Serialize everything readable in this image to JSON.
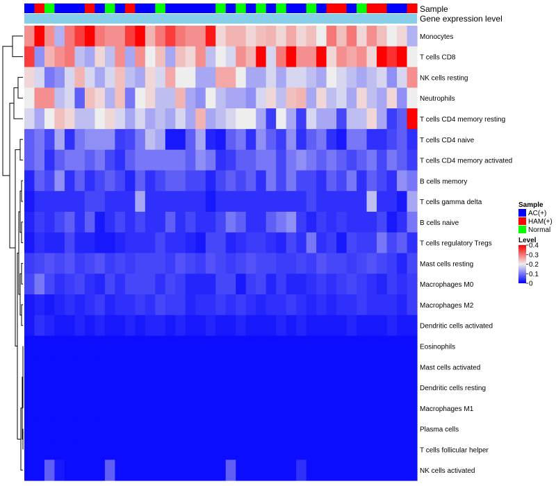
{
  "chart_data": {
    "type": "heatmap",
    "title": "",
    "annotation_tracks": [
      "Sample",
      "Gene expression level"
    ],
    "legend_sample": {
      "title": "Sample",
      "entries": [
        {
          "label": "AC(+)",
          "color": "#0000ff"
        },
        {
          "label": "HAM(+)",
          "color": "#ff0000"
        },
        {
          "label": "Normal",
          "color": "#00ff00"
        }
      ]
    },
    "legend_level": {
      "title": "Level",
      "ticks": [
        "0.4",
        "0.3",
        "0.2",
        "0.1",
        "0"
      ],
      "tick_values": [
        0.4,
        0.3,
        0.2,
        0.1,
        0
      ],
      "range": [
        0,
        0.4
      ],
      "colors": {
        "low": "#0000ff",
        "mid": "#eeeeee",
        "high": "#ff0000"
      }
    },
    "expression_bar_color": "#87ceeb",
    "sample_groups": [
      "AC(+)",
      "HAM(+)",
      "Normal",
      "AC(+)",
      "AC(+)",
      "AC(+)",
      "HAM(+)",
      "AC(+)",
      "Normal",
      "AC(+)",
      "HAM(+)",
      "AC(+)",
      "AC(+)",
      "Normal",
      "AC(+)",
      "AC(+)",
      "AC(+)",
      "AC(+)",
      "AC(+)",
      "Normal",
      "AC(+)",
      "Normal",
      "AC(+)",
      "Normal",
      "AC(+)",
      "Normal",
      "AC(+)",
      "AC(+)",
      "Normal",
      "AC(+)",
      "HAM(+)",
      "HAM(+)",
      "AC(+)",
      "Normal",
      "HAM(+)",
      "HAM(+)",
      "AC(+)",
      "AC(+)",
      "HAM(+)"
    ],
    "rows": [
      "Monocytes",
      "T cells CD8",
      "NK cells resting",
      "Neutrophils",
      "T cells CD4 memory resting",
      "T cells CD4 naive",
      "T cells CD4 memory activated",
      "B cells memory",
      "T cells gamma delta",
      "B cells naive",
      "T cells regulatory  Tregs",
      "Mast cells resting",
      "Macrophages M0",
      "Macrophages M2",
      "Dendritic cells activated",
      "Eosinophils",
      "Mast cells activated",
      "Dendritic cells resting",
      "Macrophages M1",
      "Plasma cells",
      "T cells follicular helper",
      "NK cells activated"
    ],
    "values": [
      [
        0.28,
        0.4,
        0.28,
        0.15,
        0.3,
        0.35,
        0.4,
        0.3,
        0.28,
        0.28,
        0.35,
        0.4,
        0.25,
        0.3,
        0.35,
        0.3,
        0.28,
        0.28,
        0.38,
        0.22,
        0.25,
        0.25,
        0.22,
        0.24,
        0.25,
        0.22,
        0.26,
        0.22,
        0.24,
        0.2,
        0.3,
        0.24,
        0.3,
        0.22,
        0.28,
        0.24,
        0.2,
        0.22,
        0.15
      ],
      [
        0.35,
        0.12,
        0.25,
        0.28,
        0.3,
        0.16,
        0.14,
        0.22,
        0.16,
        0.28,
        0.14,
        0.28,
        0.2,
        0.24,
        0.14,
        0.24,
        0.22,
        0.28,
        0.16,
        0.2,
        0.18,
        0.28,
        0.25,
        0.4,
        0.18,
        0.3,
        0.4,
        0.28,
        0.28,
        0.4,
        0.22,
        0.28,
        0.26,
        0.28,
        0.22,
        0.4,
        0.36,
        0.4,
        0.2
      ],
      [
        0.22,
        0.18,
        0.1,
        0.12,
        0.18,
        0.25,
        0.18,
        0.14,
        0.18,
        0.24,
        0.16,
        0.14,
        0.22,
        0.18,
        0.26,
        0.2,
        0.2,
        0.14,
        0.14,
        0.26,
        0.26,
        0.2,
        0.14,
        0.14,
        0.18,
        0.14,
        0.18,
        0.18,
        0.16,
        0.14,
        0.2,
        0.18,
        0.16,
        0.14,
        0.16,
        0.18,
        0.12,
        0.18,
        0.28
      ],
      [
        0.2,
        0.28,
        0.28,
        0.16,
        0.18,
        0.08,
        0.24,
        0.22,
        0.15,
        0.24,
        0.1,
        0.2,
        0.22,
        0.16,
        0.16,
        0.25,
        0.14,
        0.12,
        0.2,
        0.16,
        0.14,
        0.14,
        0.12,
        0.18,
        0.22,
        0.16,
        0.24,
        0.25,
        0.14,
        0.22,
        0.16,
        0.18,
        0.14,
        0.22,
        0.16,
        0.14,
        0.22,
        0.12,
        0.2
      ],
      [
        0.18,
        0.14,
        0.2,
        0.24,
        0.22,
        0.16,
        0.16,
        0.2,
        0.22,
        0.18,
        0.14,
        0.18,
        0.14,
        0.16,
        0.14,
        0.18,
        0.14,
        0.25,
        0.14,
        0.16,
        0.18,
        0.2,
        0.2,
        0.14,
        0.05,
        0.2,
        0.14,
        0.05,
        0.18,
        0.14,
        0.14,
        0.06,
        0.16,
        0.16,
        0.22,
        0.14,
        0.05,
        0.08,
        0.4
      ],
      [
        0.08,
        0.1,
        0.06,
        0.14,
        0.04,
        0.1,
        0.12,
        0.12,
        0.12,
        0.05,
        0.06,
        0.1,
        0.16,
        0.14,
        0.02,
        0.02,
        0.08,
        0.14,
        0.03,
        0.02,
        0.08,
        0.1,
        0.04,
        0.12,
        0.08,
        0.05,
        0.12,
        0.04,
        0.08,
        0.1,
        0.04,
        0.02,
        0.1,
        0.1,
        0.04,
        0.04,
        0.06,
        0.08,
        0.04
      ],
      [
        0.08,
        0.1,
        0.04,
        0.08,
        0.1,
        0.1,
        0.08,
        0.1,
        0.06,
        0.04,
        0.08,
        0.1,
        0.1,
        0.1,
        0.1,
        0.1,
        0.08,
        0.12,
        0.1,
        0.04,
        0.05,
        0.08,
        0.08,
        0.1,
        0.1,
        0.06,
        0.1,
        0.12,
        0.1,
        0.08,
        0.1,
        0.08,
        0.06,
        0.08,
        0.1,
        0.06,
        0.1,
        0.08,
        0.05
      ],
      [
        0.03,
        0.08,
        0.06,
        0.12,
        0.04,
        0.08,
        0.04,
        0.06,
        0.08,
        0.06,
        0.03,
        0.08,
        0.04,
        0.06,
        0.08,
        0.08,
        0.06,
        0.06,
        0.03,
        0.06,
        0.08,
        0.06,
        0.08,
        0.04,
        0.1,
        0.06,
        0.1,
        0.06,
        0.06,
        0.04,
        0.08,
        0.06,
        0.1,
        0.04,
        0.08,
        0.06,
        0.04,
        0.12,
        0.1
      ],
      [
        0.02,
        0.04,
        0.04,
        0.04,
        0.04,
        0.04,
        0.06,
        0.06,
        0.04,
        0.04,
        0.04,
        0.14,
        0.04,
        0.04,
        0.04,
        0.04,
        0.04,
        0.04,
        0.02,
        0.04,
        0.04,
        0.04,
        0.04,
        0.04,
        0.04,
        0.04,
        0.04,
        0.04,
        0.06,
        0.04,
        0.04,
        0.04,
        0.04,
        0.04,
        0.16,
        0.04,
        0.04,
        0.02,
        0.14
      ],
      [
        0.03,
        0.05,
        0.04,
        0.06,
        0.08,
        0.04,
        0.08,
        0.02,
        0.04,
        0.06,
        0.04,
        0.06,
        0.04,
        0.04,
        0.08,
        0.04,
        0.06,
        0.04,
        0.04,
        0.06,
        0.1,
        0.08,
        0.04,
        0.04,
        0.08,
        0.1,
        0.12,
        0.05,
        0.03,
        0.05,
        0.04,
        0.05,
        0.04,
        0.04,
        0.04,
        0.06,
        0.02,
        0.04,
        0.1
      ],
      [
        0.02,
        0.04,
        0.03,
        0.03,
        0.06,
        0.03,
        0.03,
        0.02,
        0.02,
        0.03,
        0.04,
        0.04,
        0.04,
        0.06,
        0.04,
        0.04,
        0.03,
        0.02,
        0.06,
        0.06,
        0.03,
        0.04,
        0.05,
        0.05,
        0.04,
        0.03,
        0.06,
        0.04,
        0.1,
        0.04,
        0.05,
        0.02,
        0.06,
        0.05,
        0.05,
        0.1,
        0.06,
        0.08,
        0.04
      ],
      [
        0.05,
        0.06,
        0.07,
        0.06,
        0.07,
        0.05,
        0.06,
        0.07,
        0.05,
        0.06,
        0.05,
        0.06,
        0.06,
        0.06,
        0.05,
        0.07,
        0.06,
        0.05,
        0.07,
        0.06,
        0.05,
        0.06,
        0.07,
        0.06,
        0.06,
        0.05,
        0.05,
        0.06,
        0.05,
        0.07,
        0.06,
        0.06,
        0.05,
        0.06,
        0.07,
        0.06,
        0.05,
        0.03,
        0.06
      ],
      [
        0.06,
        0.1,
        0.06,
        0.04,
        0.05,
        0.06,
        0.04,
        0.03,
        0.06,
        0.04,
        0.06,
        0.06,
        0.06,
        0.04,
        0.06,
        0.05,
        0.03,
        0.03,
        0.03,
        0.06,
        0.06,
        0.02,
        0.05,
        0.06,
        0.03,
        0.05,
        0.03,
        0.03,
        0.04,
        0.05,
        0.04,
        0.05,
        0.06,
        0.05,
        0.04,
        0.03,
        0.05,
        0.04,
        0.05
      ],
      [
        0.02,
        0.03,
        0.02,
        0.03,
        0.04,
        0.03,
        0.04,
        0.05,
        0.03,
        0.04,
        0.04,
        0.05,
        0.04,
        0.06,
        0.05,
        0.05,
        0.03,
        0.04,
        0.04,
        0.05,
        0.04,
        0.05,
        0.04,
        0.03,
        0.04,
        0.04,
        0.05,
        0.04,
        0.03,
        0.04,
        0.03,
        0.04,
        0.04,
        0.05,
        0.04,
        0.04,
        0.04,
        0.03,
        0.05
      ],
      [
        0.02,
        0.04,
        0.03,
        0.02,
        0.02,
        0.03,
        0.02,
        0.03,
        0.02,
        0.02,
        0.03,
        0.02,
        0.03,
        0.03,
        0.02,
        0.03,
        0.02,
        0.02,
        0.03,
        0.02,
        0.02,
        0.03,
        0.02,
        0.02,
        0.02,
        0.03,
        0.02,
        0.03,
        0.02,
        0.02,
        0.02,
        0.02,
        0.03,
        0.02,
        0.02,
        0.02,
        0.03,
        0.02,
        0.02
      ],
      [
        0.01,
        0.01,
        0.01,
        0.01,
        0.01,
        0.01,
        0.01,
        0.01,
        0.01,
        0.01,
        0.01,
        0.01,
        0.01,
        0.01,
        0.01,
        0.01,
        0.01,
        0.01,
        0.01,
        0.01,
        0.01,
        0.01,
        0.01,
        0.01,
        0.01,
        0.01,
        0.01,
        0.01,
        0.01,
        0.01,
        0.01,
        0.01,
        0.01,
        0.01,
        0.01,
        0.01,
        0.01,
        0.01,
        0.01
      ],
      [
        0.01,
        0.01,
        0.01,
        0.01,
        0.01,
        0.01,
        0.01,
        0.01,
        0.01,
        0.01,
        0.01,
        0.01,
        0.01,
        0.01,
        0.01,
        0.01,
        0.01,
        0.01,
        0.01,
        0.01,
        0.01,
        0.01,
        0.01,
        0.01,
        0.01,
        0.01,
        0.01,
        0.01,
        0.01,
        0.01,
        0.01,
        0.01,
        0.01,
        0.01,
        0.01,
        0.01,
        0.01,
        0.01,
        0.01
      ],
      [
        0.01,
        0.01,
        0.01,
        0.01,
        0.01,
        0.01,
        0.01,
        0.01,
        0.01,
        0.01,
        0.01,
        0.01,
        0.01,
        0.01,
        0.01,
        0.01,
        0.01,
        0.01,
        0.01,
        0.01,
        0.01,
        0.01,
        0.01,
        0.01,
        0.01,
        0.01,
        0.01,
        0.01,
        0.01,
        0.01,
        0.01,
        0.01,
        0.01,
        0.01,
        0.01,
        0.01,
        0.01,
        0.01,
        0.01
      ],
      [
        0.01,
        0.01,
        0.01,
        0.01,
        0.01,
        0.01,
        0.01,
        0.01,
        0.01,
        0.01,
        0.01,
        0.01,
        0.01,
        0.01,
        0.01,
        0.01,
        0.01,
        0.01,
        0.01,
        0.01,
        0.01,
        0.01,
        0.01,
        0.01,
        0.01,
        0.01,
        0.01,
        0.01,
        0.01,
        0.01,
        0.01,
        0.01,
        0.01,
        0.01,
        0.01,
        0.01,
        0.01,
        0.01,
        0.01
      ],
      [
        0.01,
        0.01,
        0.01,
        0.01,
        0.01,
        0.01,
        0.01,
        0.01,
        0.01,
        0.01,
        0.01,
        0.01,
        0.01,
        0.01,
        0.01,
        0.01,
        0.01,
        0.01,
        0.01,
        0.01,
        0.01,
        0.01,
        0.01,
        0.01,
        0.01,
        0.01,
        0.01,
        0.01,
        0.01,
        0.01,
        0.01,
        0.01,
        0.01,
        0.01,
        0.01,
        0.01,
        0.01,
        0.01,
        0.01
      ],
      [
        0.01,
        0.01,
        0.01,
        0.01,
        0.01,
        0.01,
        0.01,
        0.01,
        0.01,
        0.01,
        0.01,
        0.01,
        0.01,
        0.01,
        0.01,
        0.01,
        0.01,
        0.01,
        0.01,
        0.01,
        0.01,
        0.01,
        0.01,
        0.01,
        0.01,
        0.01,
        0.01,
        0.01,
        0.01,
        0.01,
        0.01,
        0.01,
        0.01,
        0.01,
        0.01,
        0.01,
        0.01,
        0.01,
        0.01
      ],
      [
        0.01,
        0.01,
        0.08,
        0.02,
        0.01,
        0.01,
        0.01,
        0.01,
        0.08,
        0.01,
        0.01,
        0.01,
        0.01,
        0.01,
        0.01,
        0.01,
        0.01,
        0.01,
        0.01,
        0.01,
        0.08,
        0.01,
        0.01,
        0.01,
        0.01,
        0.01,
        0.01,
        0.04,
        0.01,
        0.01,
        0.01,
        0.01,
        0.01,
        0.01,
        0.01,
        0.01,
        0.01,
        0.01,
        0.01
      ]
    ]
  }
}
